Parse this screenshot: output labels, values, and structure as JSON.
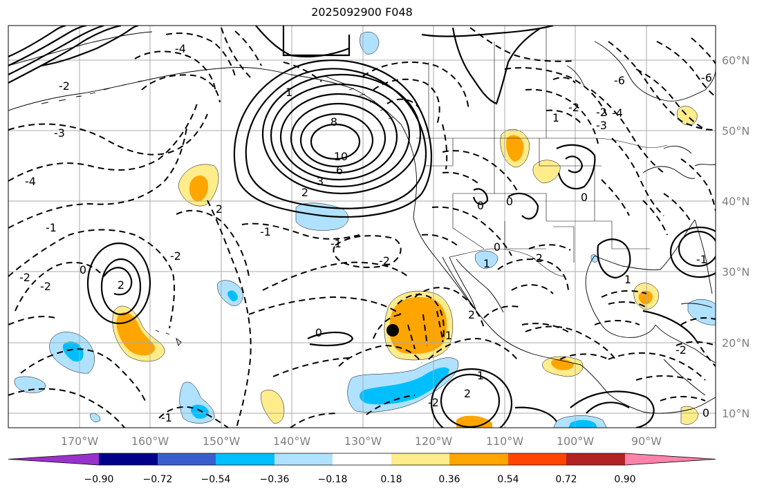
{
  "title": "2025092900 F048",
  "lon_labels": [
    "170°W",
    "160°W",
    "150°W",
    "140°W",
    "130°W",
    "120°W",
    "110°W",
    "100°W",
    "90°W"
  ],
  "lat_labels": [
    "60°N",
    "50°N",
    "40°N",
    "30°N",
    "20°N",
    "10°N"
  ],
  "colorbar": {
    "ticks": [
      "−0.90",
      "−0.72",
      "−0.54",
      "−0.36",
      "−0.18",
      "0.18",
      "0.36",
      "0.54",
      "0.72",
      "0.90"
    ],
    "colors": [
      "#9932cc",
      "#00008b",
      "#3a5fcd",
      "#00bfff",
      "#b0e2ff",
      "#ffffff",
      "#ffec8b",
      "#ffa500",
      "#ff4500",
      "#b22222",
      "#ff82ab"
    ]
  },
  "contour_labels": [
    {
      "t": "8"
    },
    {
      "t": "10"
    },
    {
      "t": "6"
    },
    {
      "t": "3"
    },
    {
      "t": "2"
    },
    {
      "t": "1"
    },
    {
      "t": "2"
    },
    {
      "t": "-4"
    },
    {
      "t": "-2"
    },
    {
      "t": "-3"
    },
    {
      "t": "-4"
    },
    {
      "t": "-1"
    },
    {
      "t": "-2"
    },
    {
      "t": "-2"
    },
    {
      "t": "0"
    },
    {
      "t": "2"
    },
    {
      "t": "-2"
    },
    {
      "t": "-1"
    },
    {
      "t": "-2"
    },
    {
      "t": "-1"
    },
    {
      "t": "0"
    },
    {
      "t": "-1"
    },
    {
      "t": "2"
    },
    {
      "t": "1"
    },
    {
      "t": "-2"
    },
    {
      "t": "-1"
    },
    {
      "t": "2"
    },
    {
      "t": "0"
    },
    {
      "t": "-2"
    },
    {
      "t": "1"
    },
    {
      "t": "0"
    },
    {
      "t": "0"
    },
    {
      "t": "-2"
    },
    {
      "t": "0"
    },
    {
      "t": "1"
    },
    {
      "t": "-6"
    },
    {
      "t": "-2"
    },
    {
      "t": "-3"
    },
    {
      "t": "-4"
    },
    {
      "t": "-6"
    },
    {
      "t": "-1"
    },
    {
      "t": "1"
    },
    {
      "t": "0"
    },
    {
      "t": "-2"
    }
  ]
}
